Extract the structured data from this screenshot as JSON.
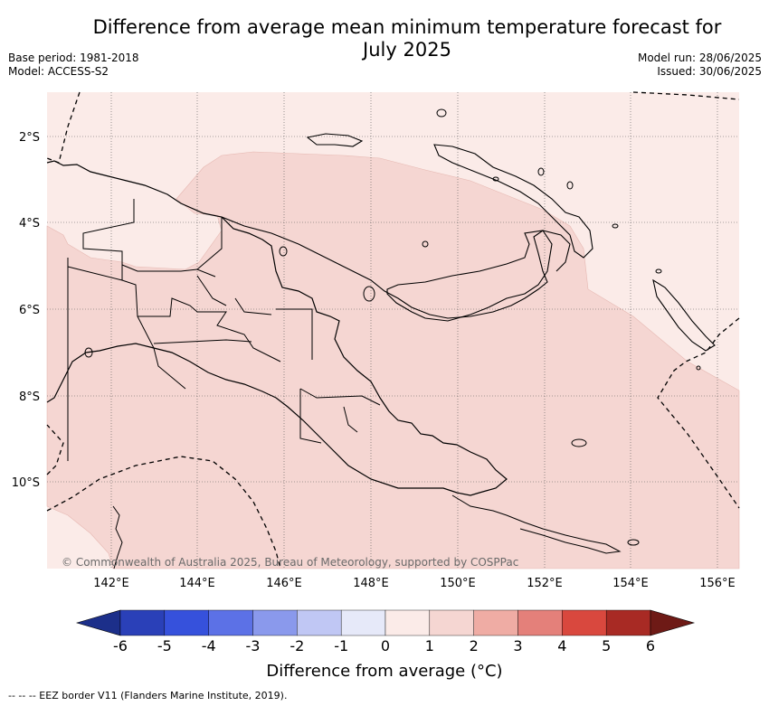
{
  "title": {
    "line1": "Difference from average mean minimum temperature forecast for",
    "line2": "July 2025"
  },
  "meta": {
    "base_period": "Base period: 1981-2018",
    "model": "Model: ACCESS-S2",
    "model_run": "Model run: 28/06/2025",
    "issued": "Issued: 30/06/2025"
  },
  "map": {
    "credit": "© Commonwealth of Australia 2025, Bureau of Meteorology, supported by COSPPac",
    "lat_labels": [
      "2°S",
      "4°S",
      "6°S",
      "8°S",
      "10°S"
    ],
    "lon_labels": [
      "142°E",
      "144°E",
      "146°E",
      "148°E",
      "150°E",
      "152°E",
      "154°E",
      "156°E"
    ],
    "field_colors": {
      "light": "#fbebe8",
      "medium": "#f5d6d2"
    }
  },
  "colorbar": {
    "title": "Difference from average (°C)",
    "tick_labels": [
      "-6",
      "-5",
      "-4",
      "-3",
      "-2",
      "-1",
      "0",
      "1",
      "2",
      "3",
      "4",
      "5",
      "6"
    ],
    "colors": [
      "#1c2f8a",
      "#2a40b8",
      "#3651dc",
      "#5c71e6",
      "#8a99ec",
      "#c0c7f4",
      "#e6e9f9",
      "#fbebe8",
      "#f5d6d2",
      "#efaca4",
      "#e4807a",
      "#d9483e",
      "#a82a24",
      "#6e1a16"
    ]
  },
  "footnote": "-- -- -- EEZ border V11 (Flanders Marine Institute, 2019)."
}
